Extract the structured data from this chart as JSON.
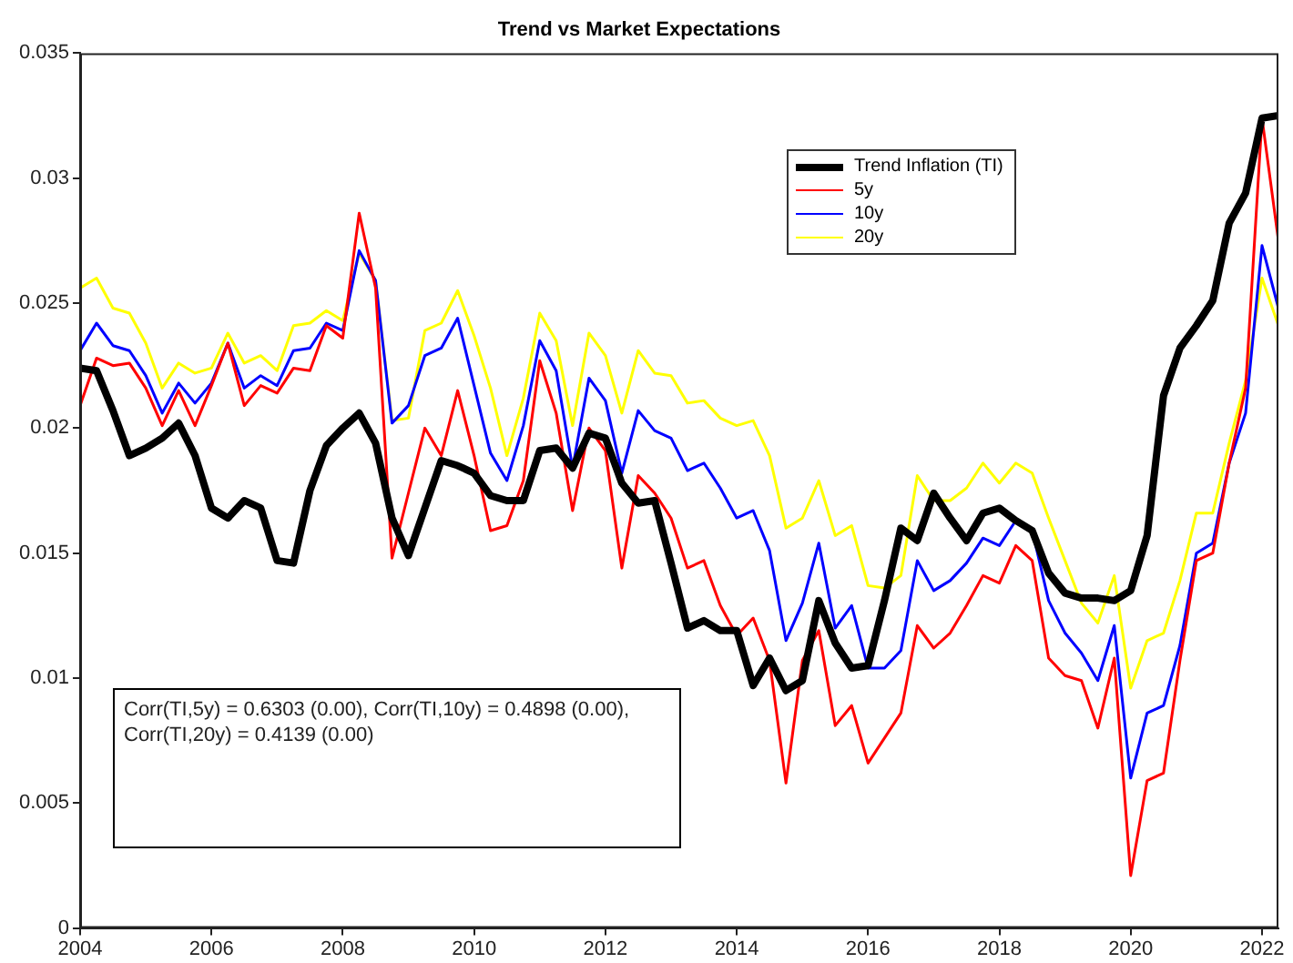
{
  "chart_data": {
    "type": "line",
    "title": "Trend vs Market Expectations",
    "x": [
      2004,
      2004.25,
      2004.5,
      2004.75,
      2005,
      2005.25,
      2005.5,
      2005.75,
      2006,
      2006.25,
      2006.5,
      2006.75,
      2007,
      2007.25,
      2007.5,
      2007.75,
      2008,
      2008.25,
      2008.5,
      2008.75,
      2009,
      2009.25,
      2009.5,
      2009.75,
      2010,
      2010.25,
      2010.5,
      2010.75,
      2011,
      2011.25,
      2011.5,
      2011.75,
      2012,
      2012.25,
      2012.5,
      2012.75,
      2013,
      2013.25,
      2013.5,
      2013.75,
      2014,
      2014.25,
      2014.5,
      2014.75,
      2015,
      2015.25,
      2015.5,
      2015.75,
      2016,
      2016.25,
      2016.5,
      2016.75,
      2017,
      2017.25,
      2017.5,
      2017.75,
      2018,
      2018.25,
      2018.5,
      2018.75,
      2019,
      2019.25,
      2019.5,
      2019.75,
      2020,
      2020.25,
      2020.5,
      2020.75,
      2021,
      2021.25,
      2021.5,
      2021.75,
      2022,
      2022.25
    ],
    "series": [
      {
        "name": "Trend Inflation (TI)",
        "color": "#000000",
        "values": [
          0.0224,
          0.0223,
          0.0207,
          0.0189,
          0.0192,
          0.0196,
          0.0202,
          0.0189,
          0.0168,
          0.0164,
          0.0171,
          0.0168,
          0.0147,
          0.0146,
          0.0175,
          0.0193,
          0.02,
          0.0206,
          0.0194,
          0.0164,
          0.0149,
          0.0168,
          0.0187,
          0.0185,
          0.0182,
          0.0173,
          0.0171,
          0.0171,
          0.0191,
          0.0192,
          0.0184,
          0.0198,
          0.0196,
          0.0178,
          0.017,
          0.0171,
          0.0146,
          0.012,
          0.0123,
          0.0119,
          0.0119,
          0.0097,
          0.0108,
          0.0095,
          0.0099,
          0.0131,
          0.0114,
          0.0104,
          0.0105,
          0.0131,
          0.016,
          0.0155,
          0.0174,
          0.0164,
          0.0155,
          0.0166,
          0.0168,
          0.0163,
          0.0159,
          0.0142,
          0.0134,
          0.0132,
          0.0132,
          0.0131,
          0.0135,
          0.0157,
          0.0213,
          0.0232,
          0.0241,
          0.0251,
          0.0282,
          0.0294,
          0.0324,
          0.0325
        ]
      },
      {
        "name": "5y",
        "color": "#ff0000",
        "values": [
          0.0209,
          0.0228,
          0.0225,
          0.0226,
          0.0216,
          0.0201,
          0.0215,
          0.0201,
          0.0217,
          0.0234,
          0.0209,
          0.0217,
          0.0214,
          0.0224,
          0.0223,
          0.0241,
          0.0236,
          0.0286,
          0.0256,
          0.0148,
          0.0174,
          0.02,
          0.0189,
          0.0215,
          0.0189,
          0.0159,
          0.0161,
          0.0179,
          0.0227,
          0.0206,
          0.0167,
          0.02,
          0.0191,
          0.0144,
          0.0181,
          0.0174,
          0.0164,
          0.0144,
          0.0147,
          0.0129,
          0.0117,
          0.0124,
          0.0107,
          0.0058,
          0.0107,
          0.0119,
          0.0081,
          0.0089,
          0.0066,
          0.0076,
          0.0086,
          0.0121,
          0.0112,
          0.0118,
          0.0129,
          0.0141,
          0.0138,
          0.0153,
          0.0147,
          0.0108,
          0.0101,
          0.0099,
          0.008,
          0.0108,
          0.0021,
          0.0059,
          0.0062,
          0.0107,
          0.0147,
          0.015,
          0.0186,
          0.0216,
          0.0324,
          0.0275
        ]
      },
      {
        "name": "10y",
        "color": "#0000ff",
        "values": [
          0.0231,
          0.0242,
          0.0233,
          0.0231,
          0.0221,
          0.0206,
          0.0218,
          0.021,
          0.0218,
          0.0234,
          0.0216,
          0.0221,
          0.0217,
          0.0231,
          0.0232,
          0.0242,
          0.0239,
          0.0271,
          0.0259,
          0.0202,
          0.0209,
          0.0229,
          0.0232,
          0.0244,
          0.0217,
          0.019,
          0.0179,
          0.0201,
          0.0235,
          0.0223,
          0.0184,
          0.022,
          0.0211,
          0.0182,
          0.0207,
          0.0199,
          0.0196,
          0.0183,
          0.0186,
          0.0176,
          0.0164,
          0.0167,
          0.0151,
          0.0115,
          0.013,
          0.0154,
          0.012,
          0.0129,
          0.0104,
          0.0104,
          0.0111,
          0.0147,
          0.0135,
          0.0139,
          0.0146,
          0.0156,
          0.0153,
          0.0163,
          0.0159,
          0.0131,
          0.0118,
          0.011,
          0.0099,
          0.0121,
          0.006,
          0.0086,
          0.0089,
          0.0113,
          0.015,
          0.0154,
          0.0186,
          0.0206,
          0.0273,
          0.0248
        ]
      },
      {
        "name": "20y",
        "color": "#ffff00",
        "values": [
          0.0256,
          0.026,
          0.0248,
          0.0246,
          0.0234,
          0.0216,
          0.0226,
          0.0222,
          0.0224,
          0.0238,
          0.0226,
          0.0229,
          0.0223,
          0.0241,
          0.0242,
          0.0247,
          0.0243,
          0.027,
          0.0259,
          0.0203,
          0.0204,
          0.0239,
          0.0242,
          0.0255,
          0.0237,
          0.0216,
          0.0189,
          0.0212,
          0.0246,
          0.0235,
          0.0201,
          0.0238,
          0.0229,
          0.0206,
          0.0231,
          0.0222,
          0.0221,
          0.021,
          0.0211,
          0.0204,
          0.0201,
          0.0203,
          0.0189,
          0.016,
          0.0164,
          0.0179,
          0.0157,
          0.0161,
          0.0137,
          0.0136,
          0.0141,
          0.0181,
          0.0171,
          0.0171,
          0.0176,
          0.0186,
          0.0178,
          0.0186,
          0.0182,
          0.0164,
          0.0147,
          0.013,
          0.0122,
          0.0141,
          0.0096,
          0.0115,
          0.0118,
          0.0139,
          0.0166,
          0.0166,
          0.0194,
          0.0219,
          0.026,
          0.0241
        ]
      }
    ],
    "xlim": [
      2004,
      2022.25
    ],
    "xticks": [
      2004,
      2006,
      2008,
      2010,
      2012,
      2014,
      2016,
      2018,
      2020,
      2022
    ],
    "ylim": [
      0,
      0.035
    ],
    "yticks": [
      0,
      0.005,
      0.01,
      0.015,
      0.02,
      0.025,
      0.03,
      0.035
    ],
    "legend": "top right",
    "marker": "none",
    "line_style": "solid",
    "annotations": [
      "Corr(TI,5y) = 0.6303 (0.00), Corr(TI,10y) = 0.4898 (0.00), Corr(TI,20y) = 0.4139 (0.00)"
    ]
  }
}
